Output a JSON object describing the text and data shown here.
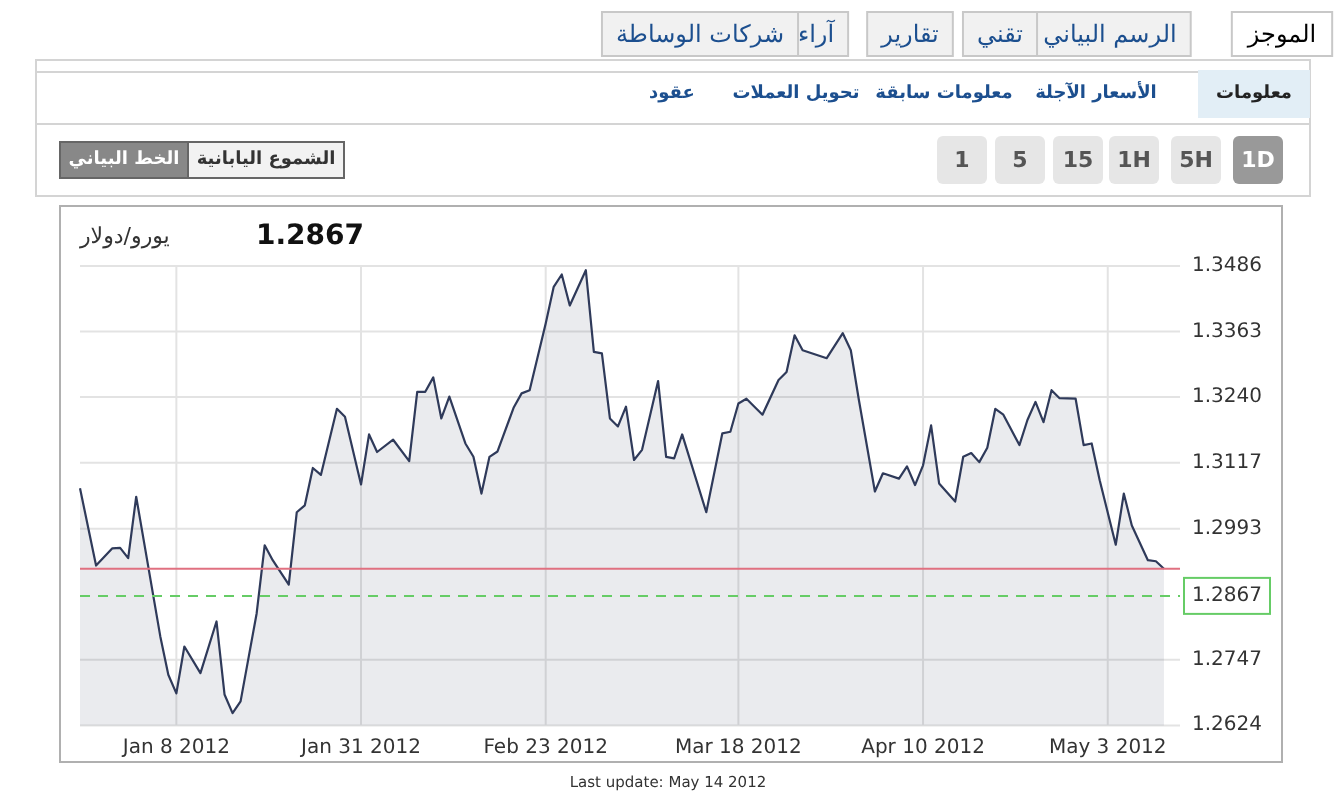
{
  "chart_data": {
    "type": "area",
    "title": "يورو/دولار",
    "subtitle": "1.2867",
    "annotations": [
      "الموجز",
      "الرسم البياني",
      "تقني",
      "تقارير",
      "آراء",
      "شركات الوساطة",
      "معلومات",
      "الأسعار الآجلة",
      "معلومات سابقة",
      "تحويل العملات",
      "عقود",
      "1D",
      "5H",
      "1H",
      "15",
      "5",
      "1",
      "الخط البياني",
      "الشموع اليابانية",
      "Last update: May 14 2012"
    ],
    "x": [
      "2011-12-27",
      "2011-12-29",
      "2011-12-31",
      "2012-01-01",
      "2012-01-02",
      "2012-01-03",
      "2012-01-06",
      "2012-01-07",
      "2012-01-08",
      "2012-01-09",
      "2012-01-11",
      "2012-01-13",
      "2012-01-14",
      "2012-01-15",
      "2012-01-16",
      "2012-01-18",
      "2012-01-19",
      "2012-01-20",
      "2012-01-22",
      "2012-01-23",
      "2012-01-24",
      "2012-01-25",
      "2012-01-26",
      "2012-01-28",
      "2012-01-29",
      "2012-01-31",
      "2012-02-01",
      "2012-02-02",
      "2012-02-04",
      "2012-02-06",
      "2012-02-07",
      "2012-02-08",
      "2012-02-09",
      "2012-02-10",
      "2012-02-11",
      "2012-02-13",
      "2012-02-14",
      "2012-02-15",
      "2012-02-16",
      "2012-02-17",
      "2012-02-19",
      "2012-02-20",
      "2012-02-21",
      "2012-02-23",
      "2012-02-24",
      "2012-02-25",
      "2012-02-26",
      "2012-02-28",
      "2012-02-29",
      "2012-03-01",
      "2012-03-02",
      "2012-03-03",
      "2012-03-04",
      "2012-03-05",
      "2012-03-06",
      "2012-03-08",
      "2012-03-09",
      "2012-03-10",
      "2012-03-11",
      "2012-03-14",
      "2012-03-16",
      "2012-03-17",
      "2012-03-18",
      "2012-03-19",
      "2012-03-21",
      "2012-03-23",
      "2012-03-24",
      "2012-03-25",
      "2012-03-26",
      "2012-03-29",
      "2012-03-31",
      "2012-04-01",
      "2012-04-02",
      "2012-04-04",
      "2012-04-05",
      "2012-04-07",
      "2012-04-08",
      "2012-04-09",
      "2012-04-10",
      "2012-04-11",
      "2012-04-12",
      "2012-04-14",
      "2012-04-15",
      "2012-04-16",
      "2012-04-17",
      "2012-04-18",
      "2012-04-19",
      "2012-04-20",
      "2012-04-22",
      "2012-04-23",
      "2012-04-24",
      "2012-04-25",
      "2012-04-26",
      "2012-04-27",
      "2012-04-29",
      "2012-04-30",
      "2012-05-01",
      "2012-05-02",
      "2012-05-04",
      "2012-05-05",
      "2012-05-06",
      "2012-05-08",
      "2012-05-09",
      "2012-05-10"
    ],
    "series": [
      {
        "color": "#2f3a5a",
        "values": [
          1.3069,
          1.2924,
          1.2956,
          1.2957,
          1.2938,
          1.3053,
          1.2791,
          1.2719,
          1.2684,
          1.2772,
          1.2722,
          1.2819,
          1.2682,
          1.2647,
          1.2669,
          1.2834,
          1.2962,
          1.2934,
          1.2888,
          1.3024,
          1.3037,
          1.3107,
          1.3094,
          1.3218,
          1.3203,
          1.3076,
          1.317,
          1.3137,
          1.316,
          1.312,
          1.325,
          1.325,
          1.3277,
          1.32,
          1.3241,
          1.3153,
          1.3128,
          1.3059,
          1.3128,
          1.3138,
          1.322,
          1.3247,
          1.3253,
          1.3378,
          1.3447,
          1.347,
          1.3412,
          1.3478,
          1.3325,
          1.3322,
          1.32,
          1.3185,
          1.3222,
          1.3122,
          1.3141,
          1.327,
          1.3128,
          1.3125,
          1.317,
          1.3024,
          1.3172,
          1.3175,
          1.3228,
          1.3237,
          1.3207,
          1.3272,
          1.3287,
          1.3356,
          1.3328,
          1.3313,
          1.336,
          1.3328,
          1.3235,
          1.3063,
          1.3097,
          1.3087,
          1.311,
          1.3075,
          1.3112,
          1.3187,
          1.3078,
          1.3044,
          1.3128,
          1.3135,
          1.3118,
          1.3145,
          1.3218,
          1.3207,
          1.315,
          1.3197,
          1.3231,
          1.3193,
          1.3253,
          1.3238,
          1.3237,
          1.315,
          1.3153,
          1.3084,
          1.2963,
          1.3059,
          1.2999,
          1.2934,
          1.2932,
          1.2918
        ]
      }
    ],
    "xlim": [
      "2011-12-27",
      "2012-05-12"
    ],
    "ylim": [
      1.2624,
      1.3486
    ],
    "xticks": [
      {
        "value": "2012-01-08",
        "label": "Jan 8 2012"
      },
      {
        "value": "2012-01-31",
        "label": "Jan 31 2012"
      },
      {
        "value": "2012-02-23",
        "label": "Feb 23 2012"
      },
      {
        "value": "2012-03-18",
        "label": "Mar 18 2012"
      },
      {
        "value": "2012-04-10",
        "label": "Apr 10 2012"
      },
      {
        "value": "2012-05-03",
        "label": "May 3 2012"
      }
    ],
    "yticks": [
      1.2624,
      1.2747,
      1.2993,
      1.3117,
      {
        "value": 1.324,
        "label": "1.3240"
      },
      1.3363,
      1.3486
    ],
    "grid": true,
    "ref_lines": [
      {
        "axis": "y",
        "value": 1.2918,
        "color": "#e07080"
      },
      {
        "axis": "y",
        "value": 1.2867,
        "label": "1.2867",
        "color": "#66cc66",
        "line_style": "dashed"
      }
    ]
  }
}
